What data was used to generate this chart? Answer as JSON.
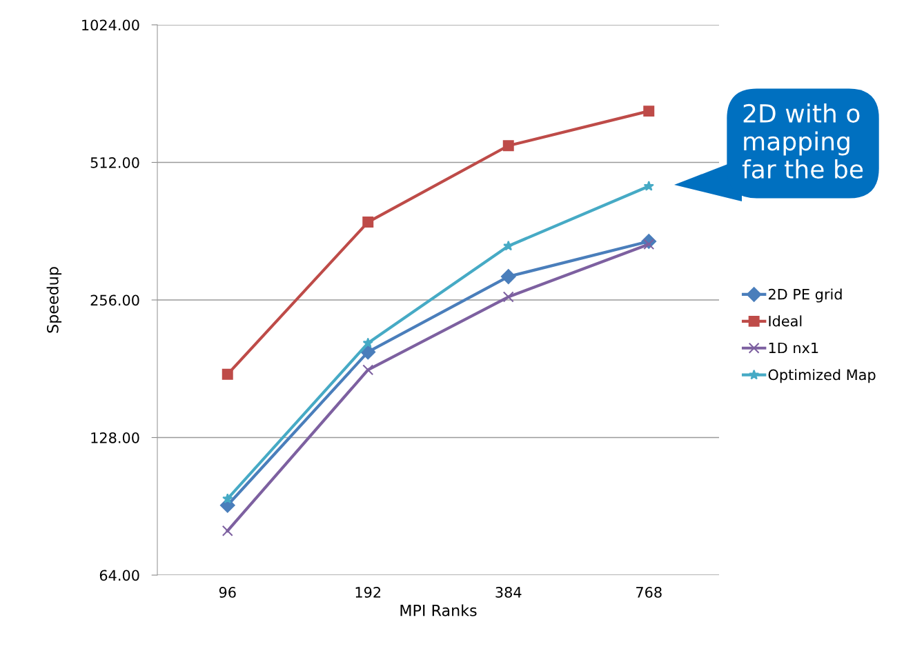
{
  "chart_data": {
    "type": "line",
    "xlabel": "MPI Ranks",
    "ylabel": "Speedup",
    "categories": [
      "96",
      "192",
      "384",
      "768"
    ],
    "series": [
      {
        "name": "2D PE grid",
        "color": "#4a7ebb",
        "marker": "diamond",
        "values": [
          91,
          197,
          288,
          344
        ]
      },
      {
        "name": "Ideal",
        "color": "#be4b48",
        "marker": "square",
        "values": [
          176,
          379,
          557,
          663
        ]
      },
      {
        "name": "1D nx1",
        "color": "#7d60a0",
        "marker": "cross",
        "values": [
          80,
          180,
          260,
          339
        ]
      },
      {
        "name": "Optimized Map",
        "color": "#46aac5",
        "marker": "star",
        "values": [
          94,
          206,
          336,
          454
        ]
      }
    ],
    "log": "y",
    "ylim": [
      64,
      1024
    ],
    "yticks": [
      {
        "value": 64,
        "label": "64.00"
      },
      {
        "value": 128,
        "label": "128.00"
      },
      {
        "value": 256,
        "label": "256.00"
      },
      {
        "value": 512,
        "label": "512.00"
      },
      {
        "value": 1024,
        "label": "1024.00"
      }
    ],
    "grid": "y",
    "legend": "right",
    "line_style": "solid",
    "annotations": [
      "2D with o\nmapping\nfar the be"
    ]
  }
}
